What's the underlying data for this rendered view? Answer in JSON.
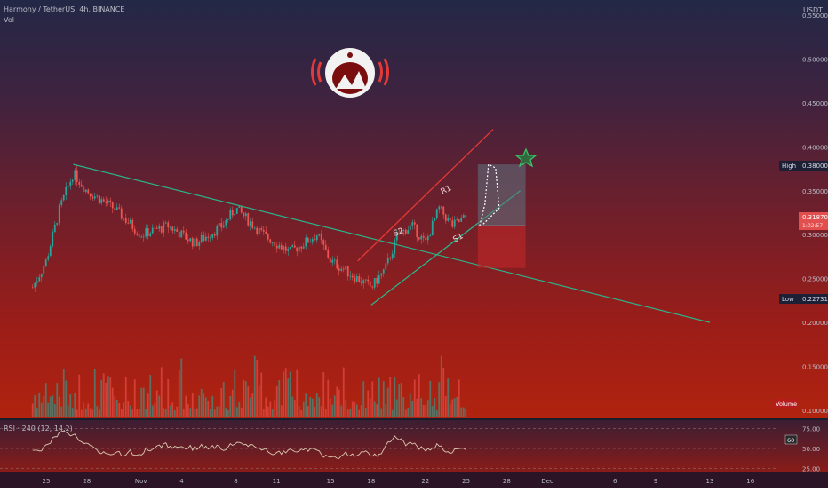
{
  "header": {
    "symbol_line": "Harmony / TetherUS, 4h, BINANCE",
    "volume_label": "Vol",
    "currency": "USDT"
  },
  "price_badges": {
    "high_label": "High",
    "high_value": "0.38000",
    "low_label": "Low",
    "low_value": "0.22731",
    "last_value": "0.31870",
    "last_sub": "1:02:57",
    "volume_tag": "Volume"
  },
  "rsi": {
    "label": "RSI · 240 (12, 14.2)",
    "badge": "60",
    "levels": [
      "75.00",
      "50.00",
      "25.00"
    ]
  },
  "colors": {
    "up": "#26a69a",
    "down": "#ef5350",
    "trendline": "#2bb38a",
    "channel_upper": "#e53935",
    "rsi_line": "#d9c9b0",
    "target_box": "#5a6b73",
    "stop_box": "#c62828"
  },
  "chart_data": {
    "type": "candlestick",
    "timeframe": "4h",
    "exchange": "BINANCE",
    "pair": "Harmony / TetherUS",
    "y_unit": "USDT",
    "ylim": [
      0.1,
      0.55
    ],
    "yticks": [
      "0.55000",
      "0.50000",
      "0.45000",
      "0.40000",
      "0.35000",
      "0.30000",
      "0.25000",
      "0.20000",
      "0.15000",
      "0.10000"
    ],
    "x_ticks": [
      "25",
      "28",
      "Nov",
      "4",
      "8",
      "11",
      "15",
      "18",
      "22",
      "25",
      "28",
      "Dec",
      "6",
      "9",
      "13",
      "16"
    ],
    "close_path": [
      {
        "x": "Oct 24",
        "y": 0.24
      },
      {
        "x": "Oct 25",
        "y": 0.27
      },
      {
        "x": "Oct 26",
        "y": 0.33
      },
      {
        "x": "Oct 27",
        "y": 0.37
      },
      {
        "x": "Oct 28",
        "y": 0.35
      },
      {
        "x": "Oct 29",
        "y": 0.34
      },
      {
        "x": "Oct 30",
        "y": 0.33
      },
      {
        "x": "Nov 1",
        "y": 0.3
      },
      {
        "x": "Nov 3",
        "y": 0.31
      },
      {
        "x": "Nov 5",
        "y": 0.29
      },
      {
        "x": "Nov 7",
        "y": 0.31
      },
      {
        "x": "Nov 8",
        "y": 0.33
      },
      {
        "x": "Nov 10",
        "y": 0.3
      },
      {
        "x": "Nov 12",
        "y": 0.28
      },
      {
        "x": "Nov 14",
        "y": 0.3
      },
      {
        "x": "Nov 15",
        "y": 0.27
      },
      {
        "x": "Nov 17",
        "y": 0.25
      },
      {
        "x": "Nov 18",
        "y": 0.24
      },
      {
        "x": "Nov 19",
        "y": 0.26
      },
      {
        "x": "Nov 20",
        "y": 0.3
      },
      {
        "x": "Nov 21",
        "y": 0.31
      },
      {
        "x": "Nov 22",
        "y": 0.29
      },
      {
        "x": "Nov 23",
        "y": 0.33
      },
      {
        "x": "Nov 24",
        "y": 0.31
      },
      {
        "x": "Nov 25",
        "y": 0.32
      }
    ],
    "annotations": {
      "labels": [
        "R1",
        "S2",
        "S1"
      ],
      "descending_trendline": [
        {
          "x": "Oct 27",
          "y": 0.38
        },
        {
          "x": "Dec 13",
          "y": 0.2
        }
      ],
      "channel_upper": [
        {
          "x": "Nov 17",
          "y": 0.27
        },
        {
          "x": "Nov 27",
          "y": 0.42
        }
      ],
      "channel_lower": [
        {
          "x": "Nov 18",
          "y": 0.22
        },
        {
          "x": "Nov 29",
          "y": 0.35
        }
      ],
      "long_position": {
        "entry": 0.31,
        "target": 0.38,
        "stop": 0.262
      }
    },
    "volume": {
      "ylim": [
        0,
        1
      ],
      "note": "relative"
    },
    "rsi": {
      "levels": [
        75,
        50,
        25
      ],
      "ylim": [
        20,
        80
      ]
    }
  }
}
